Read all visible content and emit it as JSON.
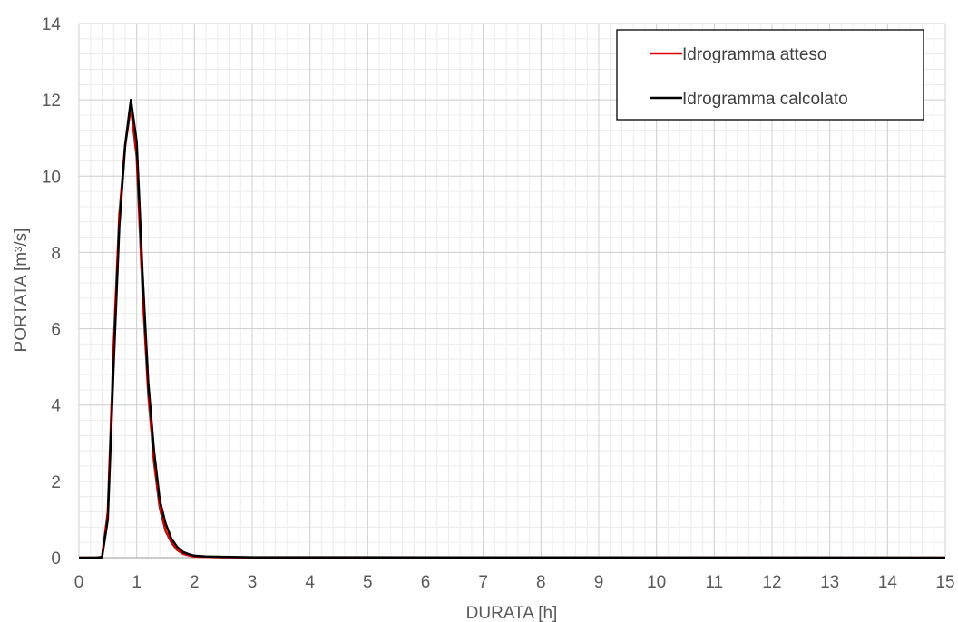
{
  "chart_data": {
    "type": "line",
    "title": "",
    "xlabel": "DURATA [h]",
    "ylabel": "PORTATA [m³/s]",
    "xlim": [
      0,
      15
    ],
    "ylim": [
      0,
      14
    ],
    "xticks": [
      0,
      1,
      2,
      3,
      4,
      5,
      6,
      7,
      8,
      9,
      10,
      11,
      12,
      13,
      14,
      15
    ],
    "yticks": [
      0,
      2,
      4,
      6,
      8,
      10,
      12,
      14
    ],
    "x_minor_step": 0.2,
    "y_minor_step": 0.4,
    "grid": true,
    "legend_position": "top-right",
    "series": [
      {
        "name": "Idrogramma atteso",
        "color": "#e00000",
        "x": [
          0,
          0.2,
          0.3,
          0.4,
          0.5,
          0.6,
          0.7,
          0.8,
          0.9,
          1.0,
          1.1,
          1.2,
          1.3,
          1.4,
          1.5,
          1.6,
          1.7,
          1.8,
          1.9,
          2.0,
          2.2,
          2.5,
          3.0,
          15
        ],
        "y": [
          0,
          0,
          0,
          0.02,
          1.2,
          5.5,
          9.0,
          10.8,
          11.8,
          10.5,
          7.0,
          4.3,
          2.5,
          1.3,
          0.7,
          0.4,
          0.2,
          0.1,
          0.06,
          0.03,
          0.02,
          0.01,
          0.005,
          0
        ]
      },
      {
        "name": "Idrogramma calcolato",
        "color": "#000000",
        "x": [
          0,
          0.2,
          0.3,
          0.4,
          0.5,
          0.6,
          0.7,
          0.8,
          0.9,
          1.0,
          1.1,
          1.2,
          1.3,
          1.4,
          1.5,
          1.6,
          1.7,
          1.8,
          1.9,
          2.0,
          2.2,
          2.5,
          3.0,
          15
        ],
        "y": [
          0,
          0,
          0,
          0.01,
          1.0,
          5.0,
          8.7,
          10.8,
          12.0,
          10.9,
          7.5,
          4.6,
          2.8,
          1.5,
          0.9,
          0.5,
          0.28,
          0.15,
          0.09,
          0.05,
          0.03,
          0.02,
          0.01,
          0
        ]
      }
    ]
  }
}
